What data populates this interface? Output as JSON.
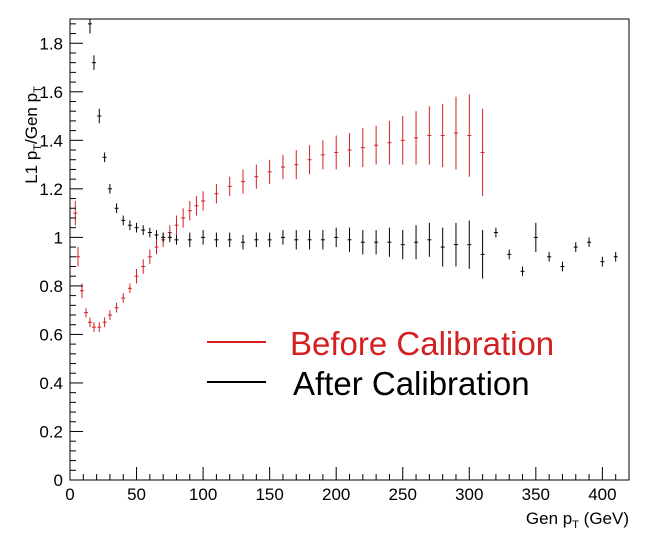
{
  "chart_data": {
    "type": "scatter",
    "title": "",
    "xlabel": {
      "text": "Gen p",
      "sub": "T",
      "unit": " (GeV)"
    },
    "ylabel": {
      "p1": "L1 p",
      "s1": "T",
      "p2": "/Gen p",
      "s2": "T"
    },
    "xlim": [
      0,
      420
    ],
    "ylim": [
      0,
      1.9
    ],
    "x_ticks": [
      0,
      50,
      100,
      150,
      200,
      250,
      300,
      350,
      400
    ],
    "y_ticks": [
      0,
      0.2,
      0.4,
      0.6,
      0.8,
      1,
      1.2,
      1.4,
      1.6,
      1.8
    ],
    "legend_position": "center-right",
    "grid": false,
    "error_bars": true,
    "series": [
      {
        "name": "Before Calibration",
        "color": "#d42020",
        "x": [
          4,
          6,
          9,
          12,
          15,
          18,
          22,
          26,
          30,
          35,
          40,
          45,
          50,
          55,
          60,
          65,
          70,
          75,
          80,
          85,
          90,
          95,
          100,
          110,
          120,
          130,
          140,
          150,
          160,
          170,
          180,
          190,
          200,
          210,
          220,
          230,
          240,
          250,
          260,
          270,
          280,
          290,
          300,
          310
        ],
        "y": [
          1.1,
          0.92,
          0.78,
          0.69,
          0.65,
          0.63,
          0.63,
          0.65,
          0.68,
          0.71,
          0.75,
          0.79,
          0.84,
          0.88,
          0.92,
          0.96,
          0.99,
          1.02,
          1.05,
          1.08,
          1.11,
          1.13,
          1.15,
          1.18,
          1.21,
          1.23,
          1.25,
          1.27,
          1.29,
          1.3,
          1.32,
          1.34,
          1.35,
          1.36,
          1.37,
          1.38,
          1.39,
          1.4,
          1.41,
          1.42,
          1.42,
          1.43,
          1.42,
          1.35
        ],
        "err": [
          0.05,
          0.04,
          0.03,
          0.02,
          0.02,
          0.02,
          0.02,
          0.02,
          0.02,
          0.02,
          0.02,
          0.02,
          0.03,
          0.03,
          0.03,
          0.03,
          0.03,
          0.03,
          0.04,
          0.04,
          0.04,
          0.04,
          0.04,
          0.04,
          0.04,
          0.05,
          0.05,
          0.05,
          0.05,
          0.06,
          0.06,
          0.06,
          0.07,
          0.07,
          0.08,
          0.08,
          0.09,
          0.1,
          0.11,
          0.12,
          0.13,
          0.15,
          0.17,
          0.18
        ]
      },
      {
        "name": "After Calibration",
        "color": "#000000",
        "x": [
          15,
          18,
          22,
          26,
          30,
          35,
          40,
          45,
          50,
          55,
          60,
          65,
          70,
          75,
          80,
          90,
          100,
          110,
          120,
          130,
          140,
          150,
          160,
          170,
          180,
          190,
          200,
          210,
          220,
          230,
          240,
          250,
          260,
          270,
          280,
          290,
          300,
          310,
          320,
          330,
          340,
          350,
          360,
          370,
          380,
          390,
          400,
          410
        ],
        "y": [
          1.88,
          1.72,
          1.5,
          1.33,
          1.2,
          1.12,
          1.07,
          1.05,
          1.04,
          1.03,
          1.02,
          1.01,
          1.0,
          1.0,
          0.99,
          0.99,
          1.0,
          0.99,
          0.99,
          0.98,
          0.99,
          0.99,
          1.0,
          0.99,
          0.99,
          0.99,
          1.0,
          0.99,
          0.98,
          0.98,
          0.98,
          0.97,
          0.98,
          0.99,
          0.96,
          0.97,
          0.97,
          0.93,
          1.02,
          0.93,
          0.86,
          1.0,
          0.92,
          0.88,
          0.96,
          0.98,
          0.9,
          0.92
        ],
        "err": [
          0.04,
          0.03,
          0.03,
          0.02,
          0.02,
          0.02,
          0.02,
          0.02,
          0.02,
          0.02,
          0.02,
          0.02,
          0.02,
          0.02,
          0.02,
          0.03,
          0.03,
          0.03,
          0.03,
          0.03,
          0.03,
          0.03,
          0.03,
          0.04,
          0.04,
          0.04,
          0.04,
          0.05,
          0.05,
          0.05,
          0.06,
          0.06,
          0.07,
          0.07,
          0.08,
          0.09,
          0.1,
          0.1,
          0.02,
          0.02,
          0.02,
          0.06,
          0.02,
          0.02,
          0.02,
          0.02,
          0.02,
          0.02
        ]
      }
    ]
  }
}
